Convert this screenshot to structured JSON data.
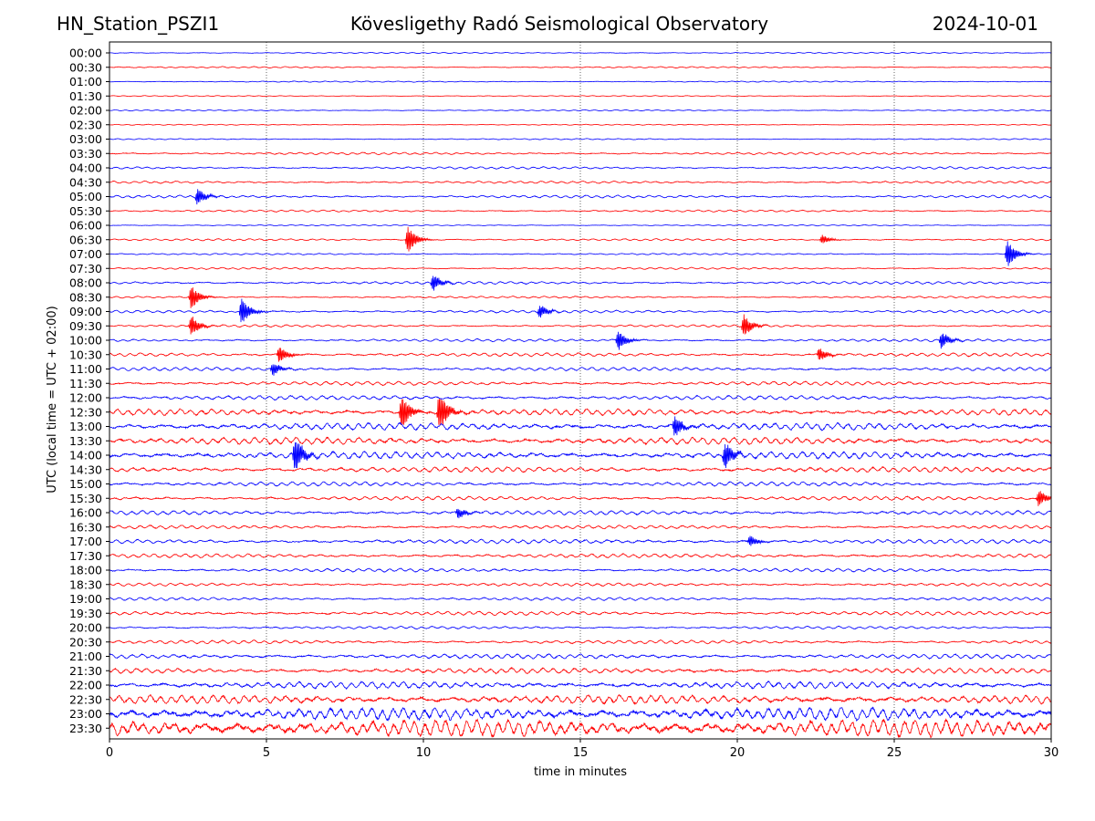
{
  "header": {
    "station": "HN_Station_PSZI1",
    "observatory": "Kövesligethy Radó Seismological Observatory",
    "date": "2024-10-01"
  },
  "chart_data": {
    "type": "line",
    "title": "Kövesligethy Radó Seismological Observatory",
    "xlabel": "time in minutes",
    "ylabel": "UTC (local time = UTC + 02:00)",
    "xlim": [
      0,
      30
    ],
    "x_ticks": [
      "0",
      "5",
      "10",
      "15",
      "20",
      "25",
      "30"
    ],
    "x_tick_values": [
      0,
      5,
      10,
      15,
      20,
      25,
      30
    ],
    "grid": "vertical dotted at each 5 minutes",
    "row_labels": [
      "00:00",
      "00:30",
      "01:00",
      "01:30",
      "02:00",
      "02:30",
      "03:00",
      "03:30",
      "04:00",
      "04:30",
      "05:00",
      "05:30",
      "06:00",
      "06:30",
      "07:00",
      "07:30",
      "08:00",
      "08:30",
      "09:00",
      "09:30",
      "10:00",
      "10:30",
      "11:00",
      "11:30",
      "12:00",
      "12:30",
      "13:00",
      "13:30",
      "14:00",
      "14:30",
      "15:00",
      "15:30",
      "16:00",
      "16:30",
      "17:00",
      "17:30",
      "18:00",
      "18:30",
      "19:00",
      "19:30",
      "20:00",
      "20:30",
      "21:00",
      "21:30",
      "22:00",
      "22:30",
      "23:00",
      "23:30"
    ],
    "trace_colors": [
      "#0000ff",
      "#ff0000"
    ],
    "noise_level": [
      0.15,
      0.18,
      0.15,
      0.12,
      0.15,
      0.12,
      0.15,
      0.3,
      0.3,
      0.3,
      0.35,
      0.25,
      0.15,
      0.25,
      0.2,
      0.25,
      0.35,
      0.25,
      0.35,
      0.3,
      0.35,
      0.45,
      0.45,
      0.5,
      0.55,
      0.8,
      0.9,
      0.9,
      0.9,
      0.7,
      0.55,
      0.5,
      0.55,
      0.45,
      0.55,
      0.5,
      0.45,
      0.4,
      0.4,
      0.5,
      0.35,
      0.45,
      0.6,
      0.7,
      0.9,
      1.1,
      1.6,
      2.2
    ],
    "events": [
      {
        "row": "05:00",
        "minute": 2.8,
        "amplitude": 1.5
      },
      {
        "row": "06:30",
        "minute": 9.5,
        "amplitude": 2.5
      },
      {
        "row": "06:30",
        "minute": 22.7,
        "amplitude": 0.8
      },
      {
        "row": "07:00",
        "minute": 28.6,
        "amplitude": 2.5
      },
      {
        "row": "08:00",
        "minute": 10.3,
        "amplitude": 1.5
      },
      {
        "row": "08:30",
        "minute": 2.6,
        "amplitude": 2.2
      },
      {
        "row": "09:00",
        "minute": 4.2,
        "amplitude": 2.5
      },
      {
        "row": "09:00",
        "minute": 13.7,
        "amplitude": 1.2
      },
      {
        "row": "09:30",
        "minute": 2.6,
        "amplitude": 1.8
      },
      {
        "row": "09:30",
        "minute": 20.2,
        "amplitude": 2.0
      },
      {
        "row": "10:00",
        "minute": 16.2,
        "amplitude": 1.8
      },
      {
        "row": "10:00",
        "minute": 26.5,
        "amplitude": 1.5
      },
      {
        "row": "10:30",
        "minute": 5.4,
        "amplitude": 1.5
      },
      {
        "row": "10:30",
        "minute": 22.6,
        "amplitude": 1.2
      },
      {
        "row": "11:00",
        "minute": 5.2,
        "amplitude": 1.2
      },
      {
        "row": "12:30",
        "minute": 9.3,
        "amplitude": 3.5
      },
      {
        "row": "12:30",
        "minute": 10.5,
        "amplitude": 4.0
      },
      {
        "row": "13:00",
        "minute": 18.0,
        "amplitude": 2.0
      },
      {
        "row": "14:00",
        "minute": 5.9,
        "amplitude": 3.5
      },
      {
        "row": "14:00",
        "minute": 19.6,
        "amplitude": 2.5
      },
      {
        "row": "15:30",
        "minute": 29.6,
        "amplitude": 1.5
      },
      {
        "row": "16:00",
        "minute": 11.1,
        "amplitude": 1.0
      },
      {
        "row": "17:00",
        "minute": 20.4,
        "amplitude": 1.0
      }
    ]
  }
}
